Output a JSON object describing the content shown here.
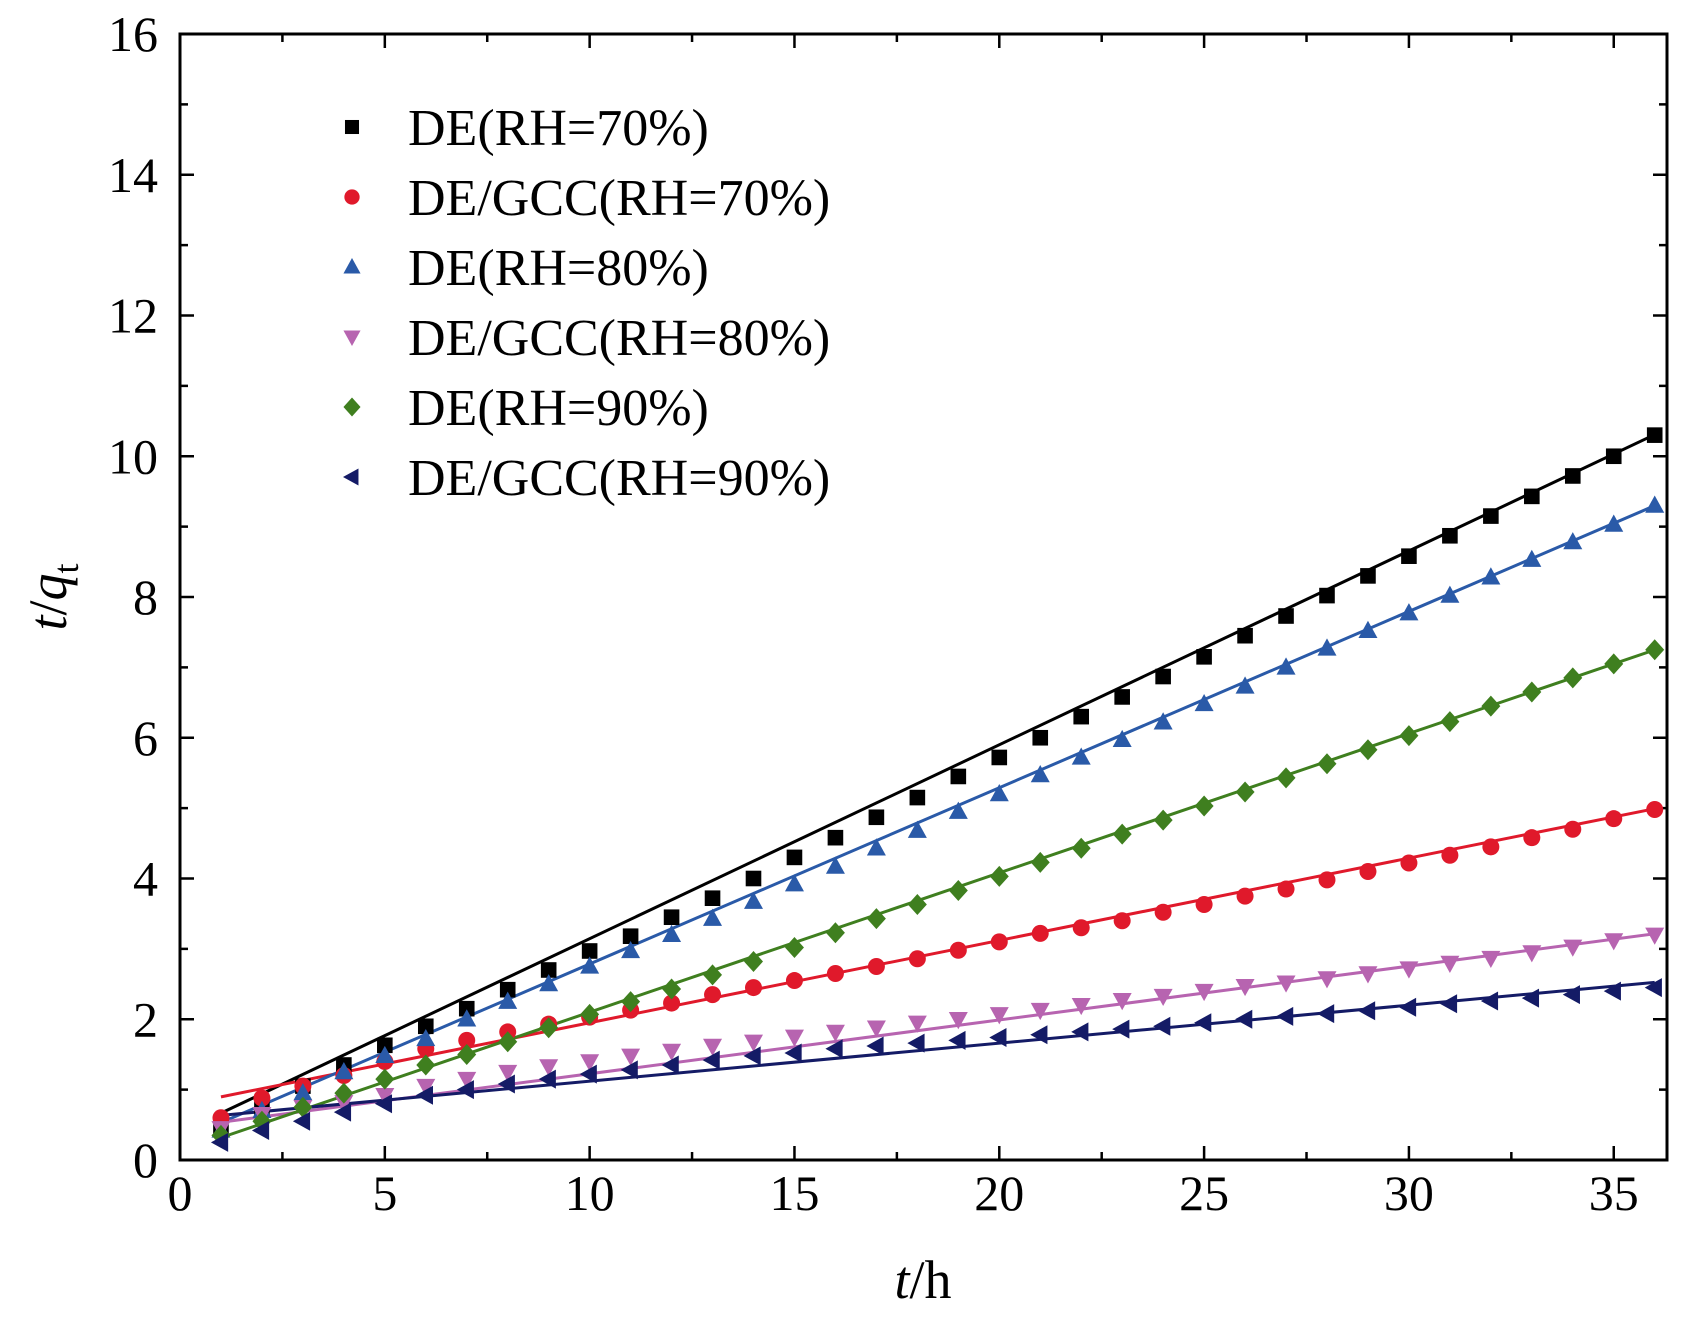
{
  "chart_data": {
    "type": "scatter",
    "xlabel": {
      "italic": "t",
      "rest": "/h"
    },
    "ylabel": {
      "italic_t": "t",
      "slash": "/",
      "italic_q": "q",
      "sub": "t"
    },
    "xlim": [
      0,
      36.3
    ],
    "ylim": [
      0,
      16
    ],
    "xticks": [
      0,
      5,
      10,
      15,
      20,
      25,
      30,
      35
    ],
    "yticks": [
      0,
      2,
      4,
      6,
      8,
      10,
      12,
      14,
      16
    ],
    "grid": false,
    "legend_position": "top-left",
    "x": [
      1,
      2,
      3,
      4,
      5,
      6,
      7,
      8,
      9,
      10,
      11,
      12,
      13,
      14,
      15,
      16,
      17,
      18,
      19,
      20,
      21,
      22,
      23,
      24,
      25,
      26,
      27,
      28,
      29,
      30,
      31,
      32,
      33,
      34,
      35,
      36
    ],
    "series": [
      {
        "name": "DE(RH=70%)",
        "marker": "square",
        "color": "#000000",
        "fit": [
          0.39,
          0.2755
        ],
        "values": [
          0.45,
          0.72,
          1.05,
          1.35,
          1.63,
          1.9,
          2.15,
          2.42,
          2.7,
          2.97,
          3.18,
          3.45,
          3.72,
          4.0,
          4.3,
          4.58,
          4.87,
          5.15,
          5.45,
          5.72,
          6.0,
          6.3,
          6.58,
          6.87,
          7.15,
          7.45,
          7.73,
          8.02,
          8.3,
          8.58,
          8.87,
          9.15,
          9.43,
          9.72,
          10.0,
          10.3
        ]
      },
      {
        "name": "DE/GCC(RH=70%)",
        "marker": "circle",
        "color": "#e0192b",
        "fit": [
          0.78,
          0.117
        ],
        "values": [
          0.6,
          0.88,
          1.05,
          1.2,
          1.4,
          1.58,
          1.7,
          1.82,
          1.93,
          2.03,
          2.13,
          2.23,
          2.35,
          2.45,
          2.55,
          2.65,
          2.75,
          2.86,
          2.98,
          3.1,
          3.22,
          3.3,
          3.4,
          3.52,
          3.63,
          3.75,
          3.85,
          3.98,
          4.1,
          4.22,
          4.33,
          4.45,
          4.58,
          4.7,
          4.85,
          4.98
        ]
      },
      {
        "name": "DE(RH=80%)",
        "marker": "triangle-up",
        "color": "#2a5aa8",
        "fit": [
          0.28,
          0.2505
        ],
        "values": [
          0.42,
          0.7,
          0.95,
          1.25,
          1.48,
          1.72,
          2.0,
          2.25,
          2.5,
          2.75,
          2.97,
          3.2,
          3.43,
          3.67,
          3.92,
          4.17,
          4.43,
          4.68,
          4.95,
          5.2,
          5.47,
          5.72,
          5.97,
          6.22,
          6.48,
          6.73,
          7.0,
          7.27,
          7.52,
          7.77,
          8.02,
          8.28,
          8.53,
          8.78,
          9.03,
          9.3
        ]
      },
      {
        "name": "DE/GCC(RH=80%)",
        "marker": "triangle-down",
        "color": "#b764b0",
        "fit": [
          0.46,
          0.0765
        ],
        "values": [
          0.45,
          0.65,
          0.75,
          0.82,
          0.92,
          1.05,
          1.15,
          1.25,
          1.33,
          1.4,
          1.48,
          1.55,
          1.62,
          1.68,
          1.75,
          1.82,
          1.88,
          1.95,
          2.0,
          2.07,
          2.13,
          2.2,
          2.27,
          2.33,
          2.4,
          2.47,
          2.52,
          2.58,
          2.65,
          2.72,
          2.8,
          2.87,
          2.95,
          3.03,
          3.12,
          3.2
        ]
      },
      {
        "name": "DE(RH=90%)",
        "marker": "diamond",
        "color": "#3f7f1f",
        "fit": [
          0.12,
          0.198
        ],
        "values": [
          0.35,
          0.55,
          0.75,
          0.95,
          1.15,
          1.35,
          1.5,
          1.68,
          1.88,
          2.07,
          2.25,
          2.43,
          2.63,
          2.82,
          3.02,
          3.23,
          3.43,
          3.63,
          3.83,
          4.03,
          4.23,
          4.43,
          4.63,
          4.83,
          5.03,
          5.23,
          5.43,
          5.63,
          5.83,
          6.03,
          6.23,
          6.45,
          6.65,
          6.85,
          7.05,
          7.25
        ]
      },
      {
        "name": "DE/GCC(RH=90%)",
        "marker": "triangle-left",
        "color": "#141b66",
        "fit": [
          0.58,
          0.054
        ],
        "values": [
          0.25,
          0.42,
          0.55,
          0.68,
          0.8,
          0.92,
          1.0,
          1.08,
          1.15,
          1.22,
          1.28,
          1.35,
          1.42,
          1.48,
          1.52,
          1.58,
          1.62,
          1.66,
          1.7,
          1.74,
          1.78,
          1.82,
          1.86,
          1.9,
          1.95,
          2.0,
          2.04,
          2.08,
          2.12,
          2.17,
          2.22,
          2.26,
          2.3,
          2.35,
          2.4,
          2.45
        ]
      }
    ]
  }
}
